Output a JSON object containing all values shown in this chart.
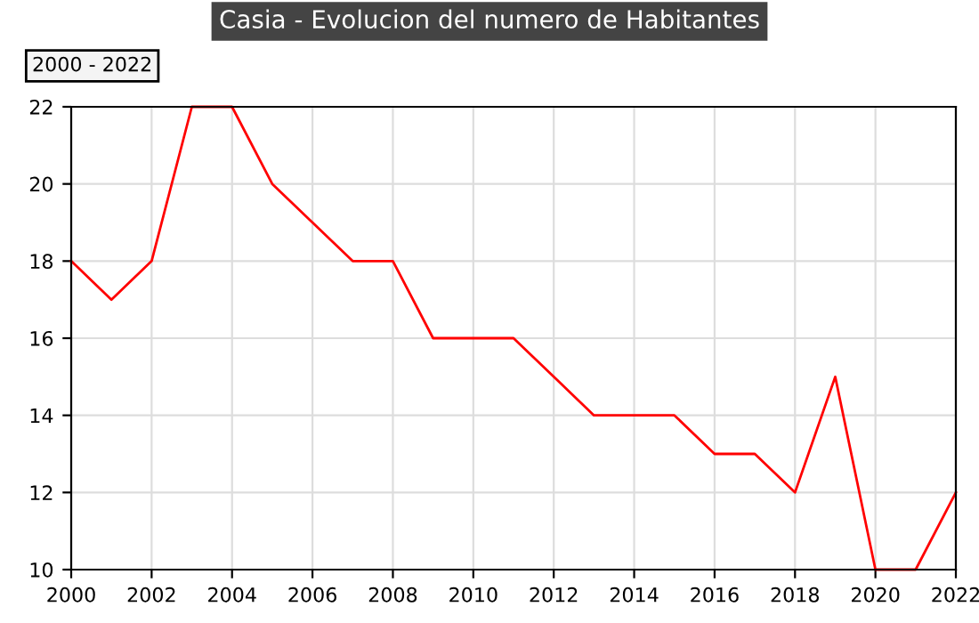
{
  "chart_data": {
    "type": "line",
    "title": "Casia - Evolucion del numero de Habitantes",
    "annotations": [
      "2000 - 2022"
    ],
    "x": [
      2000,
      2001,
      2002,
      2003,
      2004,
      2005,
      2006,
      2007,
      2008,
      2009,
      2010,
      2011,
      2012,
      2013,
      2014,
      2015,
      2016,
      2017,
      2018,
      2019,
      2020,
      2021,
      2022
    ],
    "series": [
      {
        "color": "#ff0000",
        "values": [
          18,
          17,
          18,
          22,
          22,
          20,
          19,
          18,
          18,
          16,
          16,
          16,
          15,
          14,
          14,
          14,
          13,
          13,
          12,
          15,
          10,
          10,
          12
        ]
      }
    ],
    "xlim": [
      2000,
      2022
    ],
    "xticks": [
      2000,
      2002,
      2004,
      2006,
      2008,
      2010,
      2012,
      2014,
      2016,
      2018,
      2020,
      2022
    ],
    "ylim": [
      10,
      22
    ],
    "yticks": [
      10,
      12,
      14,
      16,
      18,
      20,
      22
    ],
    "grid": true,
    "legend": false,
    "marker": "none",
    "line_style": "solid"
  }
}
